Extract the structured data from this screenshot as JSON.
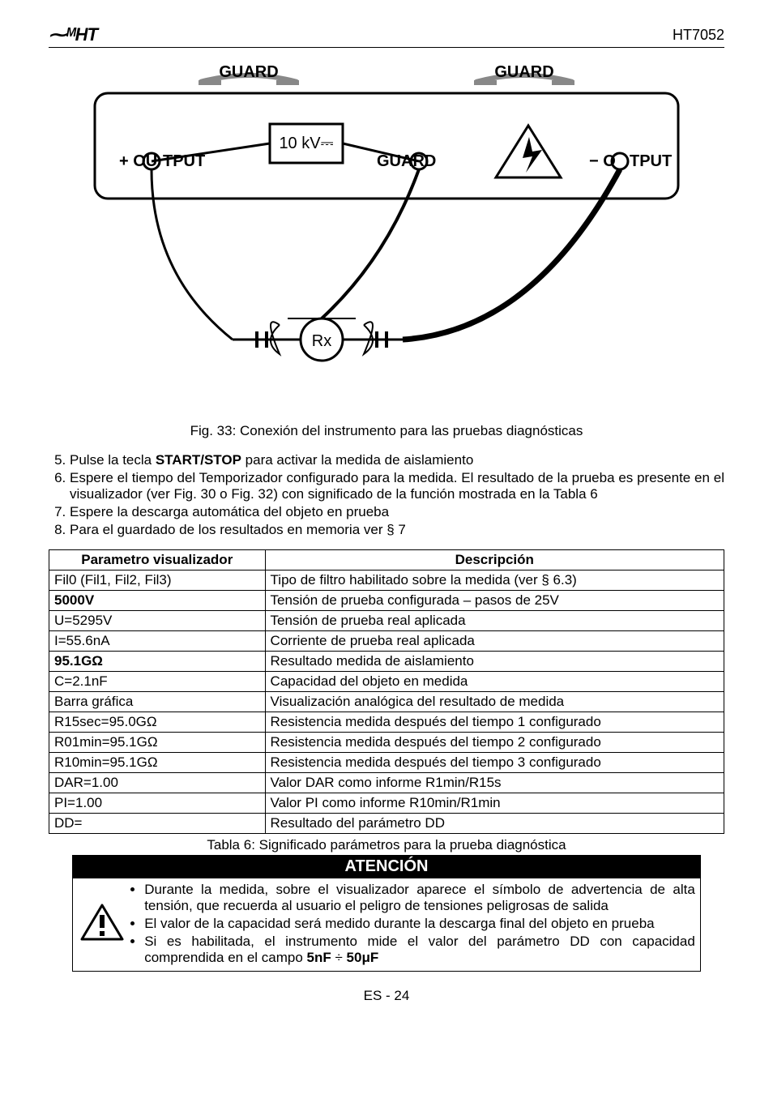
{
  "header": {
    "logo_text": "⁓ᴹHT",
    "model": "HT7052"
  },
  "diagram": {
    "guard_left": "GUARD",
    "guard_right": "GUARD",
    "output_plus": "+ OUTPUT",
    "output_minus": "− OUTPUT",
    "guard_terminal": "GUARD",
    "voltage": "10 kV⎓",
    "rx": "Rx",
    "colors": {
      "stroke": "#000000",
      "fill_bg": "#ffffff",
      "guard_arc": "#888888"
    }
  },
  "caption": "Fig. 33: Conexión del instrumento para las pruebas diagnósticas",
  "steps": [
    {
      "n": "5.",
      "html": "Pulse la tecla <b>START/STOP</b> para activar la medida de aislamiento"
    },
    {
      "n": "6.",
      "html": "Espere el tiempo del Temporizador configurado para la medida. El resultado de la prueba es presente en el visualizador (ver Fig. 30 o Fig. 32) con significado de la función mostrada en la Tabla 6"
    },
    {
      "n": "7.",
      "html": "Espere la descarga automática del objeto en prueba"
    },
    {
      "n": "8.",
      "html": "Para el guardado de los resultados en memoria ver § 7"
    }
  ],
  "table": {
    "head_left": "Parametro visualizador",
    "head_right": "Descripción",
    "rows": [
      [
        "Fil0 (Fil1, Fil2, Fil3)",
        "Tipo de filtro habilitado sobre la medida (ver § 6.3)"
      ],
      [
        "<b>5000V</b>",
        "Tensión de prueba configurada – pasos de 25V"
      ],
      [
        "U=5295V",
        "Tensión de prueba real aplicada"
      ],
      [
        "I=55.6nA",
        "Corriente de prueba real aplicada"
      ],
      [
        "<b>95.1GΩ</b>",
        "Resultado medida de aislamiento"
      ],
      [
        "C=2.1nF",
        "Capacidad del objeto en medida"
      ],
      [
        "Barra gráfica",
        "Visualización analógica del resultado de medida"
      ],
      [
        "R15sec=95.0GΩ",
        "Resistencia medida después del tiempo 1 configurado"
      ],
      [
        "R01min=95.1GΩ",
        "Resistencia medida después del tiempo 2 configurado"
      ],
      [
        "R10min=95.1GΩ",
        "Resistencia medida después del tiempo 3 configurado"
      ],
      [
        "DAR=1.00",
        "Valor DAR como informe R1min/R15s"
      ],
      [
        "PI=1.00",
        "Valor PI como informe R10min/R1min"
      ],
      [
        "DD=",
        "Resultado del parámetro DD"
      ]
    ],
    "caption": "Tabla 6: Significado parámetros para la prueba diagnóstica"
  },
  "atencion": {
    "title": "ATENCIÓN",
    "bullets": [
      "Durante la medida, sobre el visualizador aparece el símbolo de advertencia de alta tensión, que recuerda al usuario el peligro de tensiones peligrosas de salida",
      "El valor de la capacidad será medido durante la descarga final del objeto en prueba",
      "Si es habilitada, el instrumento mide el valor del parámetro DD con capacidad comprendida en el campo <b>5nF</b> ÷ <b>50μF</b>"
    ]
  },
  "footer": "ES - 24"
}
